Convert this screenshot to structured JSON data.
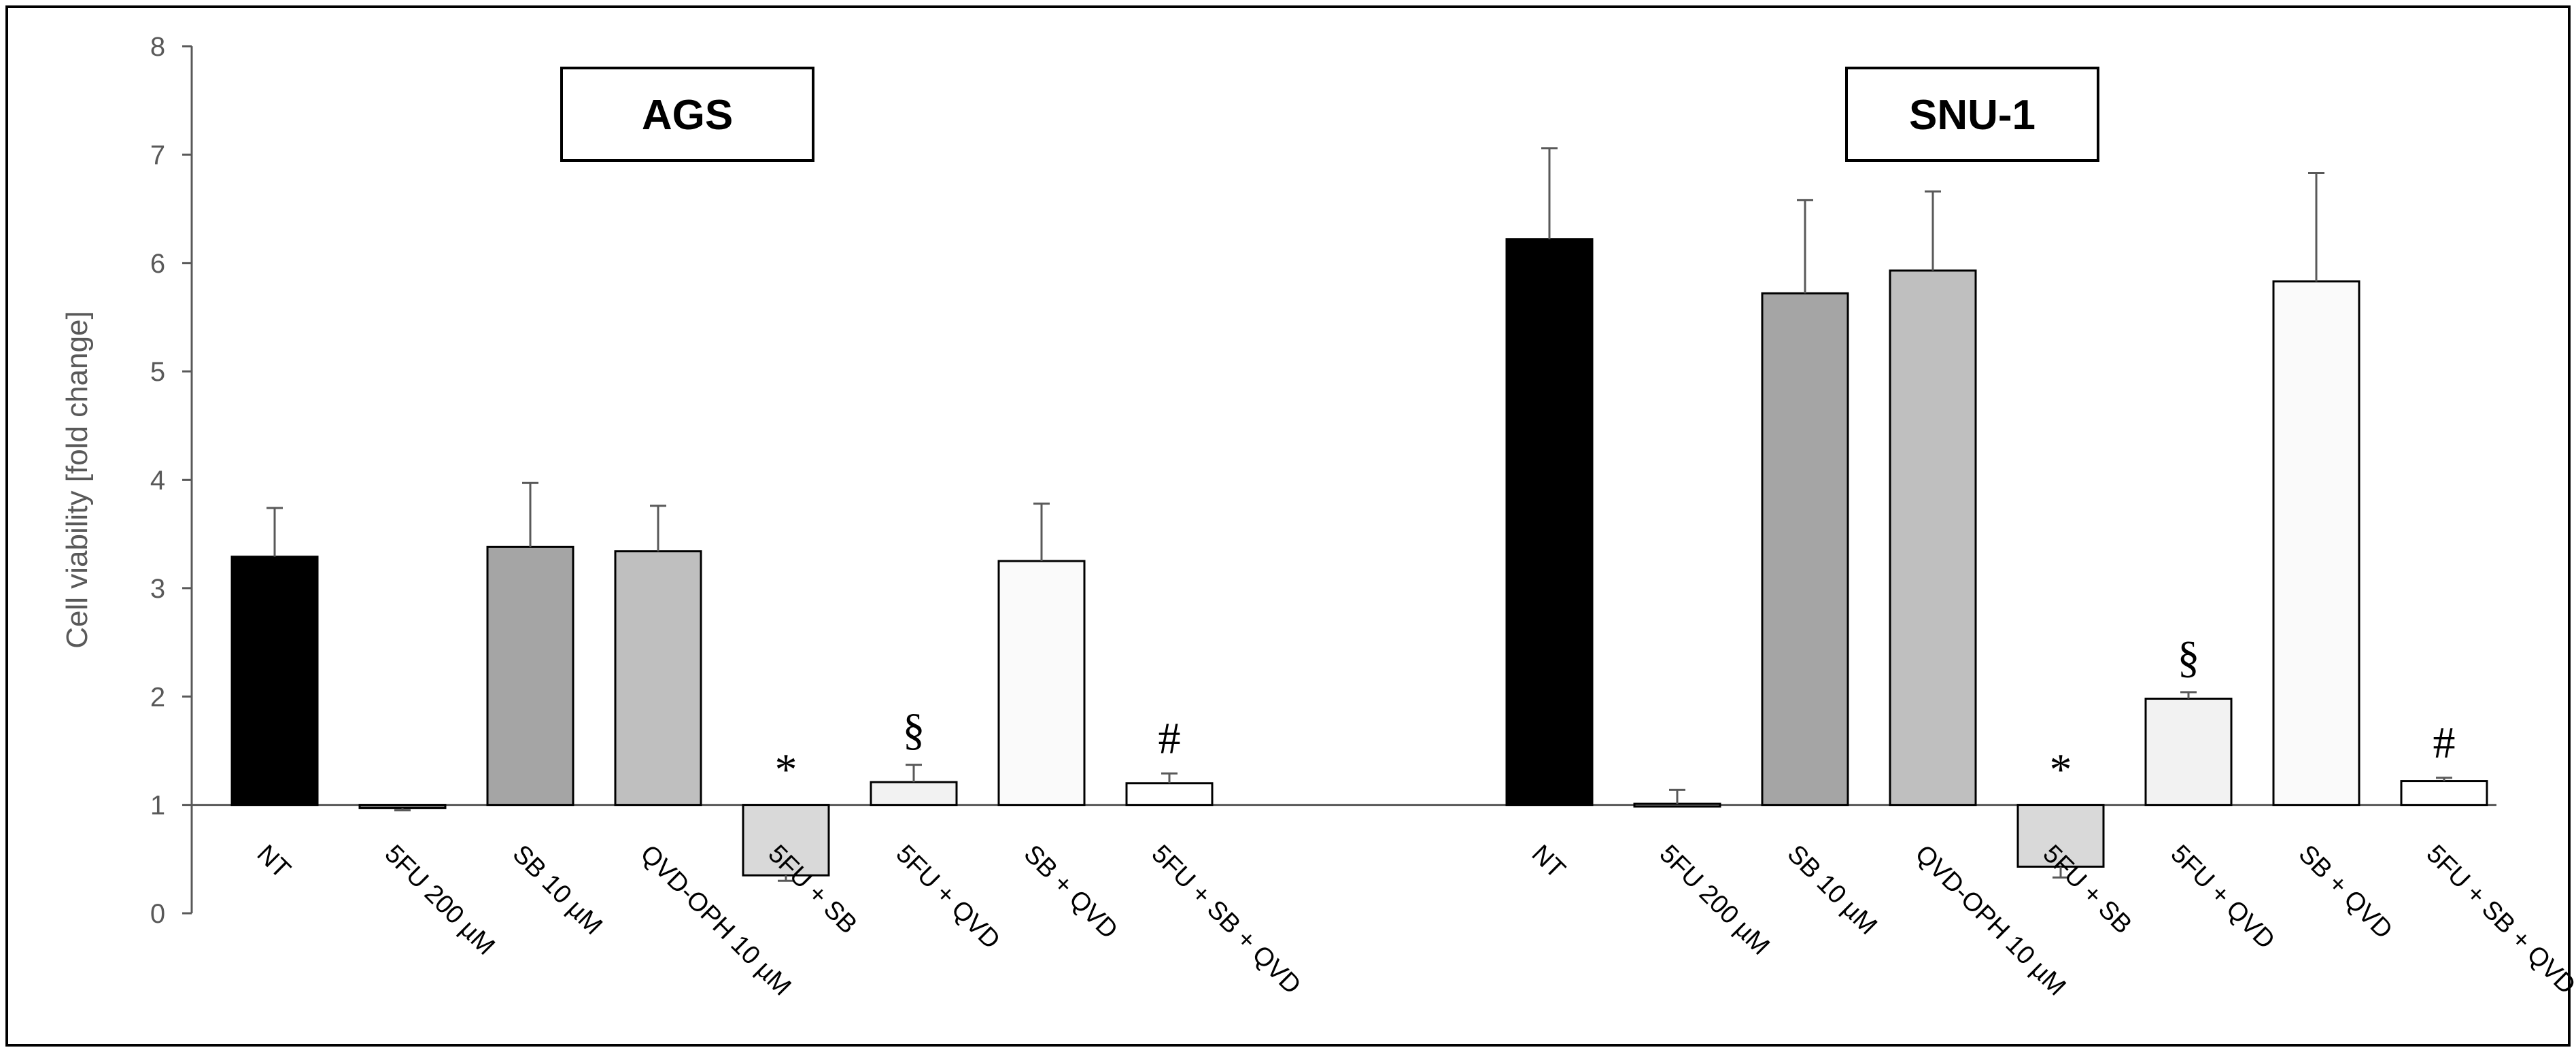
{
  "chart_data": {
    "type": "bar",
    "ylabel": "Cell viability [fold change]",
    "ylim": [
      0,
      8
    ],
    "yticks": [
      0,
      1,
      2,
      3,
      4,
      5,
      6,
      7,
      8
    ],
    "baseline": 1,
    "grid": false,
    "categories": [
      "NT",
      "5FU 200 µM",
      "SB 10 µM",
      "QVD-OPH 10 µM",
      "5FU + SB",
      "5FU + QVD",
      "SB + QVD",
      "5FU + SB + QVD"
    ],
    "bar_colors": [
      "#000000",
      "#7f7f7f",
      "#a5a5a5",
      "#bfbfbf",
      "#d9d9d9",
      "#f2f2f2",
      "#fafafa",
      "#ffffff"
    ],
    "groups": [
      {
        "title": "AGS",
        "values": [
          3.29,
          0.97,
          3.38,
          3.34,
          0.35,
          1.21,
          3.25,
          1.2
        ],
        "errors": [
          0.45,
          0.02,
          0.59,
          0.42,
          0.05,
          0.16,
          0.53,
          0.09
        ],
        "annotations": [
          "",
          "",
          "",
          "",
          "*",
          "§",
          "",
          "#"
        ]
      },
      {
        "title": "SNU-1",
        "values": [
          6.22,
          1.01,
          5.72,
          5.93,
          0.43,
          1.98,
          5.83,
          1.22
        ],
        "errors": [
          0.84,
          0.13,
          0.86,
          0.73,
          0.1,
          0.06,
          1.0,
          0.03
        ],
        "annotations": [
          "",
          "",
          "",
          "",
          "*",
          "§",
          "",
          "#"
        ]
      }
    ]
  }
}
